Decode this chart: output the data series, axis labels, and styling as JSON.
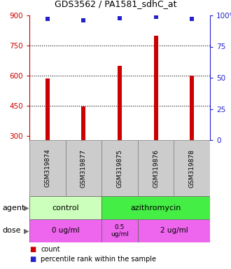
{
  "title": "GDS3562 / PA1581_sdhC_at",
  "samples": [
    "GSM319874",
    "GSM319877",
    "GSM319875",
    "GSM319876",
    "GSM319878"
  ],
  "counts": [
    585,
    448,
    650,
    800,
    600
  ],
  "percentiles": [
    97,
    96,
    98,
    99,
    97
  ],
  "y_min": 280,
  "y_max": 900,
  "y_ticks_left": [
    300,
    450,
    600,
    750,
    900
  ],
  "y_ticks_right": [
    0,
    25,
    50,
    75,
    100
  ],
  "y_right_labels": [
    "0",
    "25",
    "50",
    "75",
    "100%"
  ],
  "bar_color": "#cc0000",
  "dot_color": "#2222cc",
  "grid_lines": [
    750,
    600,
    450
  ],
  "agent_control_color": "#ccffbb",
  "agent_azith_color": "#44ee44",
  "dose_color": "#ee66ee",
  "sample_bg_color": "#cccccc",
  "legend_count_color": "#cc0000",
  "legend_pct_color": "#2222cc"
}
